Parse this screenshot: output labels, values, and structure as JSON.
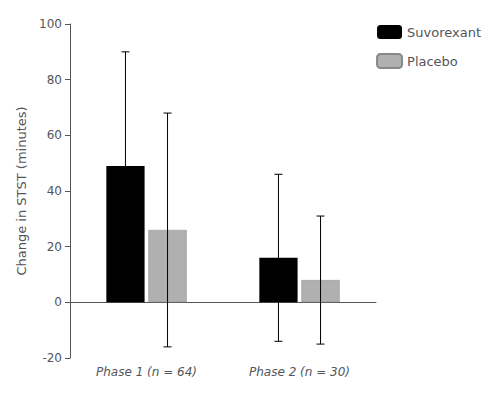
{
  "chart_data": {
    "type": "bar",
    "categories": [
      "Phase 1 (n = 64)",
      "Phase 2 (n = 30)"
    ],
    "series": [
      {
        "name": "Suvorexant",
        "color": "#000000",
        "values": [
          49,
          16
        ],
        "errors": [
          41,
          30
        ]
      },
      {
        "name": "Placebo",
        "color": "#b0b0b0",
        "values": [
          26,
          8
        ],
        "errors": [
          42,
          23
        ]
      }
    ],
    "ylabel": "Change in STST (minutes)",
    "ylim": [
      -20,
      100
    ],
    "yticks": [
      -20,
      0,
      20,
      40,
      60,
      80,
      100
    ],
    "grid": false,
    "legend": "upper right"
  }
}
